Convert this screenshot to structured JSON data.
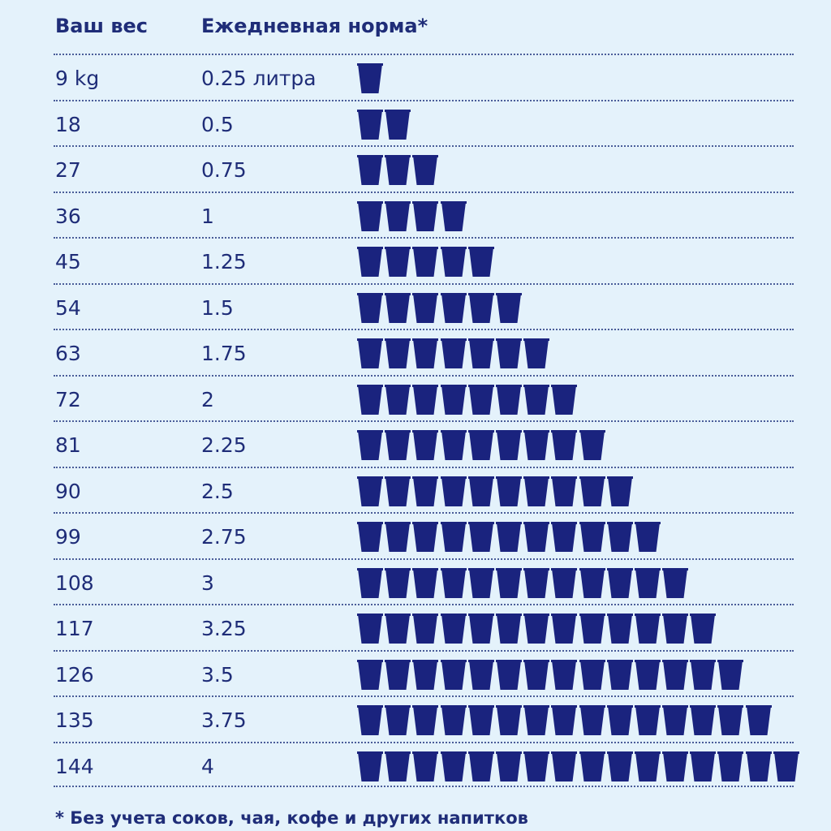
{
  "header": {
    "weight_label": "Ваш вес",
    "norm_label": "Ежедневная норма*"
  },
  "colors": {
    "background": "#e4f2fb",
    "cup": "#1a237e",
    "text": "#1f2d78"
  },
  "icon": "cup-icon",
  "footnote": "* Без учета соков, чая, кофе и других напитков",
  "chart_data": {
    "type": "table",
    "columns": [
      "Ваш вес",
      "Ежедневная норма*"
    ],
    "rows": [
      {
        "weight": "9 kg",
        "norm": "0.25 литра",
        "cups": 1
      },
      {
        "weight": "18",
        "norm": "0.5",
        "cups": 2
      },
      {
        "weight": "27",
        "norm": "0.75",
        "cups": 3
      },
      {
        "weight": "36",
        "norm": "1",
        "cups": 4
      },
      {
        "weight": "45",
        "norm": "1.25",
        "cups": 5
      },
      {
        "weight": "54",
        "norm": "1.5",
        "cups": 6
      },
      {
        "weight": "63",
        "norm": "1.75",
        "cups": 7
      },
      {
        "weight": "72",
        "norm": "2",
        "cups": 8
      },
      {
        "weight": "81",
        "norm": "2.25",
        "cups": 9
      },
      {
        "weight": "90",
        "norm": "2.5",
        "cups": 10
      },
      {
        "weight": "99",
        "norm": "2.75",
        "cups": 11
      },
      {
        "weight": "108",
        "norm": "3",
        "cups": 12
      },
      {
        "weight": "117",
        "norm": "3.25",
        "cups": 13
      },
      {
        "weight": "126",
        "norm": "3.5",
        "cups": 14
      },
      {
        "weight": "135",
        "norm": "3.75",
        "cups": 15
      },
      {
        "weight": "144",
        "norm": "4",
        "cups": 16
      }
    ]
  }
}
